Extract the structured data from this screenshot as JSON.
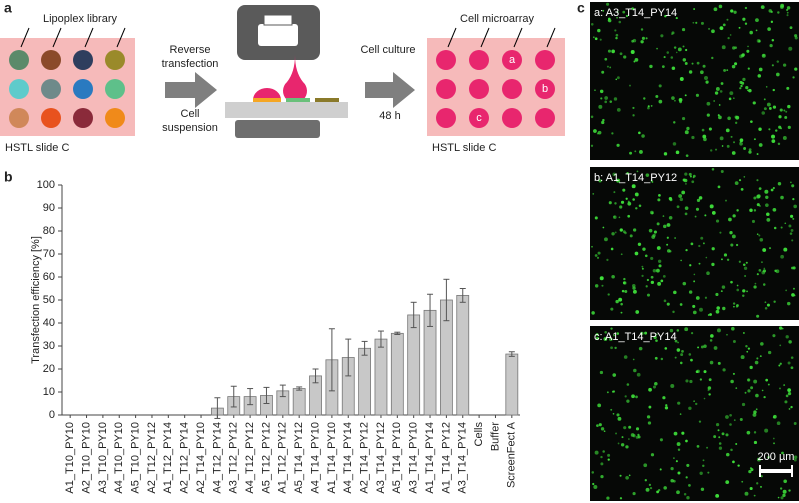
{
  "panel_a": {
    "label": "a",
    "library": "Lipoplex library",
    "slide_left": "HSTL slide C",
    "step1": [
      "Reverse",
      "transfection"
    ],
    "step2": [
      "Cell",
      "suspension"
    ],
    "step3": "Cell culture",
    "step4": "48 h",
    "microarray": "Cell microarray",
    "slide_right": "HSTL slide C",
    "spots": [
      "a",
      "b",
      "c"
    ]
  },
  "chart_data": {
    "type": "bar",
    "label": "b",
    "ylabel": "Transfection efficiency [%]",
    "categories": [
      "A1_T10_PY10",
      "A2_T10_PY10",
      "A3_T10_PY10",
      "A4_T10_PY10",
      "A5_T10_PY10",
      "A2_T12_PY12",
      "A1_T12_PY14",
      "A2_T12_PY14",
      "A2_T14_PY10",
      "A4_T12_PY14",
      "A3_T12_PY12",
      "A4_T12_PY12",
      "A5_T12_PY12",
      "A1_T12_PY12",
      "A5_T14_PY12",
      "A4_T14_PY10",
      "A1_T14_PY10",
      "A4_T14_PY14",
      "A2_T14_PY12",
      "A3_T14_PY12",
      "A5_T14_PY10",
      "A3_T14_PY10",
      "A1_T14_PY14",
      "A1_T14_PY12",
      "A3_T14_PY14",
      "Cells",
      "Buffer",
      "ScreenFect A"
    ],
    "values": [
      0,
      0,
      0,
      0,
      0,
      0,
      0,
      0,
      0,
      3,
      8,
      8,
      8.5,
      10.5,
      11.5,
      17,
      24,
      25,
      29,
      33,
      35.5,
      43.5,
      45.5,
      50,
      52,
      0,
      0,
      26.5
    ],
    "errors": [
      0,
      0,
      0,
      0,
      0,
      0,
      0,
      0,
      0,
      4.5,
      4.5,
      3.5,
      3.5,
      2.5,
      0.7,
      3,
      13.5,
      8,
      3,
      3.5,
      0.5,
      5.5,
      7,
      9,
      3,
      0,
      0,
      1
    ],
    "color": "#c8c8c8",
    "ylim": [
      0,
      100
    ],
    "yticks": [
      0,
      10,
      20,
      30,
      40,
      50,
      60,
      70,
      80,
      90,
      100
    ]
  },
  "panel_c": {
    "label": "c",
    "images": [
      "a: A3_T14_PY14",
      "b: A1_T14_PY12",
      "c: A1_T14_PY14"
    ],
    "scale": "200 µm"
  }
}
